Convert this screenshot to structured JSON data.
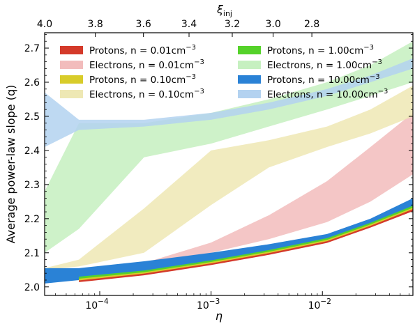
{
  "chart_data": {
    "type": "area",
    "xlabel": "η",
    "ylabel": "Average power-law slope (q)",
    "top_xlabel": "ξ",
    "top_xlabel_sub": "inj",
    "xscale": "log",
    "xlim": [
      3.2e-05,
      0.065
    ],
    "ylim": [
      1.975,
      2.745
    ],
    "x_major_ticks": [
      0.0001,
      0.001,
      0.01
    ],
    "x_major_tick_labels": [
      {
        "base": "10",
        "exp": "−4"
      },
      {
        "base": "10",
        "exp": "−3"
      },
      {
        "base": "10",
        "exp": "−2"
      }
    ],
    "y_ticks": [
      2.0,
      2.1,
      2.2,
      2.3,
      2.4,
      2.5,
      2.6,
      2.7
    ],
    "y_tick_labels": [
      "2.0",
      "2.1",
      "2.2",
      "2.3",
      "2.4",
      "2.5",
      "2.6",
      "2.7"
    ],
    "top_ticks": [
      {
        "eta": 3.2e-05,
        "label": "4.0"
      },
      {
        "eta": 9.12e-05,
        "label": "3.8"
      },
      {
        "eta": 0.000247,
        "label": "3.6"
      },
      {
        "eta": 0.000634,
        "label": "3.4"
      },
      {
        "eta": 0.00155,
        "label": "3.2"
      },
      {
        "eta": 0.00361,
        "label": "3.0"
      },
      {
        "eta": 0.00804,
        "label": "2.8"
      }
    ],
    "grid": false,
    "legend_position": "top",
    "legend_columns": 2,
    "series": [
      {
        "name": "Electrons, n = 0.01cm",
        "exp": "−3",
        "kind": "Electrons",
        "color": "#f2bcbc",
        "x": [
          6.5e-05,
          0.00025,
          0.001,
          0.0033,
          0.011,
          0.027,
          0.065
        ],
        "lower": [
          2.03,
          2.05,
          2.1,
          2.14,
          2.19,
          2.25,
          2.33
        ],
        "upper": [
          2.035,
          2.07,
          2.13,
          2.21,
          2.31,
          2.41,
          2.51
        ]
      },
      {
        "name": "Electrons, n = 0.10cm",
        "exp": "−3",
        "kind": "Electrons",
        "color": "#eee8b4",
        "x": [
          3.2e-05,
          6.5e-05,
          0.00025,
          0.001,
          0.0033,
          0.011,
          0.027,
          0.065
        ],
        "lower": [
          2.05,
          2.06,
          2.1,
          2.24,
          2.35,
          2.41,
          2.45,
          2.5
        ],
        "upper": [
          2.055,
          2.08,
          2.23,
          2.4,
          2.43,
          2.47,
          2.52,
          2.59
        ]
      },
      {
        "name": "Electrons, n = 1.00cm",
        "exp": "−3",
        "kind": "Electrons",
        "color": "#c6f0c0",
        "x": [
          3.2e-05,
          6.5e-05,
          0.00025,
          0.001,
          0.0033,
          0.011,
          0.027,
          0.065
        ],
        "lower": [
          2.1,
          2.17,
          2.38,
          2.42,
          2.47,
          2.52,
          2.56,
          2.6
        ],
        "upper": [
          2.28,
          2.48,
          2.48,
          2.51,
          2.55,
          2.6,
          2.65,
          2.72
        ]
      },
      {
        "name": "Electrons, n = 10.00cm",
        "exp": "−3",
        "kind": "Electrons",
        "color": "#b3d2f0",
        "x": [
          3.2e-05,
          6.5e-05,
          0.00025,
          0.001,
          0.0033,
          0.011,
          0.027,
          0.065
        ],
        "lower": [
          2.41,
          2.46,
          2.47,
          2.49,
          2.52,
          2.56,
          2.6,
          2.64
        ],
        "upper": [
          2.57,
          2.49,
          2.49,
          2.51,
          2.54,
          2.58,
          2.62,
          2.67
        ]
      },
      {
        "name": "Protons, n = 10.00cm",
        "exp": "−3",
        "kind": "Protons",
        "color": "#2a82d6",
        "x": [
          3.2e-05,
          6.5e-05,
          0.00025,
          0.001,
          0.0033,
          0.011,
          0.027,
          0.065
        ],
        "lower": [
          2.01,
          2.02,
          2.04,
          2.07,
          2.1,
          2.14,
          2.18,
          2.23
        ],
        "upper": [
          2.055,
          2.055,
          2.075,
          2.1,
          2.125,
          2.155,
          2.2,
          2.26
        ]
      },
      {
        "name": "Protons, n = 1.00cm",
        "exp": "−3",
        "kind": "Protons",
        "color": "#55d22a",
        "x": [
          6.5e-05,
          0.00025,
          0.001,
          0.0033,
          0.011,
          0.027,
          0.065
        ],
        "lower": [
          2.017,
          2.037,
          2.067,
          2.097,
          2.132,
          2.177,
          2.227
        ],
        "upper": [
          2.03,
          2.048,
          2.078,
          2.108,
          2.143,
          2.188,
          2.238
        ]
      },
      {
        "name": "Protons, n = 0.10cm",
        "exp": "−3",
        "kind": "Protons",
        "color": "#d8cc2a",
        "x": [
          6.5e-05,
          0.00025,
          0.001,
          0.0033,
          0.011,
          0.027,
          0.065
        ],
        "lower": [
          2.016,
          2.036,
          2.066,
          2.096,
          2.131,
          2.176,
          2.224
        ],
        "upper": [
          2.024,
          2.043,
          2.073,
          2.103,
          2.138,
          2.183,
          2.232
        ]
      },
      {
        "name": "Protons, n = 0.01cm",
        "exp": "−3",
        "kind": "Protons",
        "color": "#d43a2a",
        "x": [
          6.5e-05,
          0.00025,
          0.001,
          0.0033,
          0.011,
          0.027,
          0.065
        ],
        "lower": [
          2.014,
          2.034,
          2.064,
          2.094,
          2.129,
          2.174,
          2.222
        ],
        "upper": [
          2.019,
          2.039,
          2.069,
          2.099,
          2.134,
          2.179,
          2.228
        ]
      }
    ],
    "legend": [
      {
        "label": "Protons, n = 0.01cm",
        "exp": "−3",
        "color": "#d43a2a",
        "column": 0,
        "row": 0
      },
      {
        "label": "Electrons, n = 0.01cm",
        "exp": "−3",
        "color": "#f2bcbc",
        "column": 0,
        "row": 1
      },
      {
        "label": "Protons, n = 0.10cm",
        "exp": "−3",
        "color": "#d8cc2a",
        "column": 0,
        "row": 2
      },
      {
        "label": "Electrons, n = 0.10cm",
        "exp": "−3",
        "color": "#eee8b4",
        "column": 0,
        "row": 3
      },
      {
        "label": "Protons, n = 1.00cm",
        "exp": "−3",
        "color": "#55d22a",
        "column": 1,
        "row": 0
      },
      {
        "label": "Electrons, n = 1.00cm",
        "exp": "−3",
        "color": "#c6f0c0",
        "column": 1,
        "row": 1
      },
      {
        "label": "Protons, n = 10.00cm",
        "exp": "−3",
        "color": "#2a82d6",
        "column": 1,
        "row": 2
      },
      {
        "label": "Electrons, n = 10.00cm",
        "exp": "−3",
        "color": "#b3d2f0",
        "column": 1,
        "row": 3
      }
    ]
  }
}
